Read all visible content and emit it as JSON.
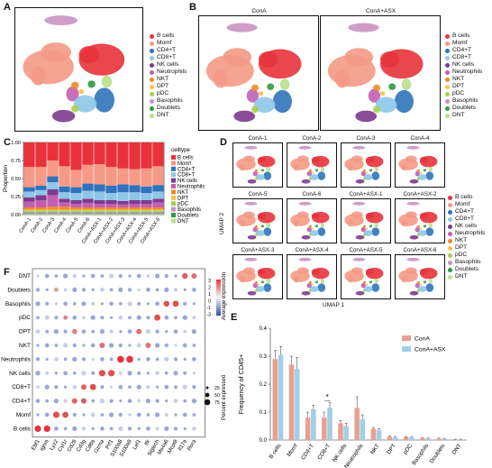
{
  "panel_labels": {
    "a": "A",
    "b": "B",
    "c": "C",
    "d": "D",
    "e": "E",
    "f": "F"
  },
  "celltypes": [
    {
      "name": "B cells",
      "color": "#e8323b"
    },
    {
      "name": "Momf",
      "color": "#f49a86"
    },
    {
      "name": "CD4+T",
      "color": "#2f73ba"
    },
    {
      "name": "CD8+T",
      "color": "#8ec6e8"
    },
    {
      "name": "NK cells",
      "color": "#7d3b8e"
    },
    {
      "name": "Neutrophils",
      "color": "#c25fb2"
    },
    {
      "name": "NKT",
      "color": "#f18a25"
    },
    {
      "name": "DPT",
      "color": "#f6c24b"
    },
    {
      "name": "pDC",
      "color": "#a6d04e"
    },
    {
      "name": "Basophils",
      "color": "#c993c2"
    },
    {
      "name": "Doublets",
      "color": "#2e9a3f"
    },
    {
      "name": "DNT",
      "color": "#b9e08e"
    }
  ],
  "panel_b": {
    "left_title": "ConA",
    "right_title": "ConA+ASX"
  },
  "panel_c": {
    "legend_title": "celltype",
    "ylabel": "Proportion",
    "yticks": [
      "0.00",
      "0.25",
      "0.50",
      "0.75",
      "1.00"
    ],
    "samples": [
      "ConA-1",
      "ConA-2",
      "ConA-3",
      "ConA-4",
      "ConA-5",
      "ConA-6",
      "ConA+ASX-1",
      "ConA+ASX-2",
      "ConA+ASX-3",
      "ConA+ASX-4",
      "ConA+ASX-5",
      "ConA+ASX-6"
    ]
  },
  "panel_d": {
    "titles": [
      "ConA-1",
      "ConA-2",
      "ConA-3",
      "ConA-4",
      "ConA-5",
      "ConA-6",
      "ConA+ASX-1",
      "ConA+ASX-2",
      "ConA+ASX-3",
      "ConA+ASX-4",
      "ConA+ASX-5",
      "ConA+ASX-6"
    ],
    "xlabel": "UMAP 1",
    "ylabel": "UMAP 2"
  },
  "panel_f": {
    "rows": [
      "DNT",
      "Doublets",
      "Basophils",
      "pDC",
      "DPT",
      "NKT",
      "Neutrophils",
      "NK cells",
      "CD8+T",
      "CD4+T",
      "Momf",
      "B cells"
    ],
    "genes": [
      "Ebf1",
      "Ighm",
      "Lyz2",
      "Csf1r",
      "Cd28",
      "Cd3g",
      "Cd8a",
      "Gzma",
      "Prf1",
      "S100a8",
      "S100a9",
      "Lef1",
      "Itk",
      "Siglech",
      "Ms4a6",
      "Mcpt8",
      "Il17a",
      "Rora"
    ],
    "expr_title": "Average expression",
    "expr_ticks": [
      "3",
      "2",
      "1",
      "0",
      "-1",
      "-3"
    ],
    "pct_title": "Percent expressed",
    "pct_ticks": [
      "25",
      "50",
      "75"
    ]
  },
  "chart_data": {
    "type": "bar",
    "ylabel": "Frequency of CD45+",
    "categories": [
      "B cells",
      "Momf",
      "CD4+T",
      "CD8+T",
      "NK cells",
      "Neutrophils",
      "NKT",
      "DPT",
      "pDC",
      "Basophils",
      "Doublets",
      "DNT"
    ],
    "series": [
      {
        "name": "ConA",
        "color": "#e9a090",
        "values": [
          0.29,
          0.27,
          0.08,
          0.08,
          0.06,
          0.115,
          0.04,
          0.012,
          0.01,
          0.006,
          0.005,
          0.002
        ],
        "errors": [
          0.03,
          0.03,
          0.02,
          0.02,
          0.01,
          0.04,
          0.005,
          0.003,
          0.002,
          0.002,
          0.002,
          0.001
        ]
      },
      {
        "name": "ConA+ASX",
        "color": "#9fd0e6",
        "values": [
          0.305,
          0.255,
          0.11,
          0.115,
          0.05,
          0.075,
          0.035,
          0.01,
          0.009,
          0.005,
          0.004,
          0.002
        ],
        "errors": [
          0.03,
          0.04,
          0.015,
          0.02,
          0.01,
          0.015,
          0.005,
          0.003,
          0.002,
          0.002,
          0.002,
          0.001
        ]
      }
    ],
    "yticks": [
      "0.0",
      "0.1",
      "0.2",
      "0.3",
      "0.4"
    ],
    "ylim": [
      0,
      0.4
    ],
    "significance": {
      "category": "CD8+T",
      "label": "*"
    }
  }
}
